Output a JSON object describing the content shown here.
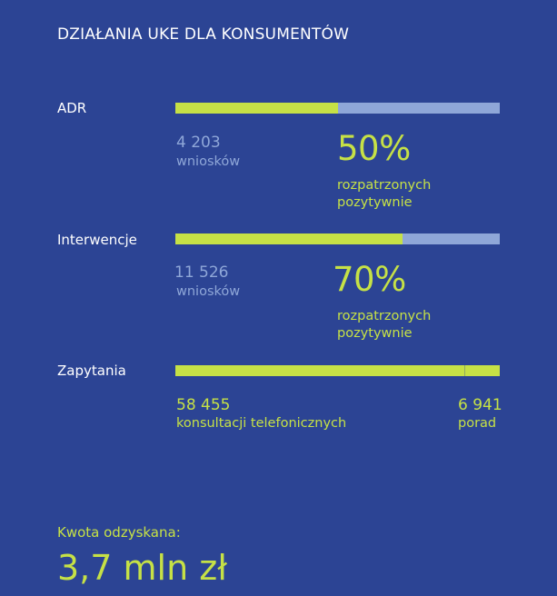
{
  "title": "DZIAŁANIA UKE DLA KONSUMENTÓW",
  "colors": {
    "background": "#2c4494",
    "accent_green": "#c6e146",
    "bar_remainder": "#8fa7d8",
    "text_white": "#ffffff"
  },
  "chart_data": {
    "type": "bar",
    "orientation": "horizontal-stacked",
    "categories": [
      "ADR",
      "Interwencje",
      "Zapytania"
    ],
    "rows": [
      {
        "label": "ADR",
        "count": "4 203",
        "count_unit": "wniosków",
        "positive_pct": 50,
        "positive_pct_label": "50%",
        "desc_line1": "rozpatrzonych",
        "desc_line2": "pozytywnie"
      },
      {
        "label": "Interwencje",
        "count": "11 526",
        "count_unit": "wniosków",
        "positive_pct": 70,
        "positive_pct_label": "70%",
        "desc_line1": "rozpatrzonych",
        "desc_line2": "pozytywnie"
      },
      {
        "label": "Zapytania",
        "phone_value": 58455,
        "phone_count": "58 455",
        "phone_unit": "konsultacji telefonicznych",
        "advice_value": 6941,
        "advice_count": "6 941",
        "advice_unit": "porad"
      }
    ]
  },
  "recovered": {
    "label": "Kwota odzyskana:",
    "value": "3,7 mln zł"
  }
}
